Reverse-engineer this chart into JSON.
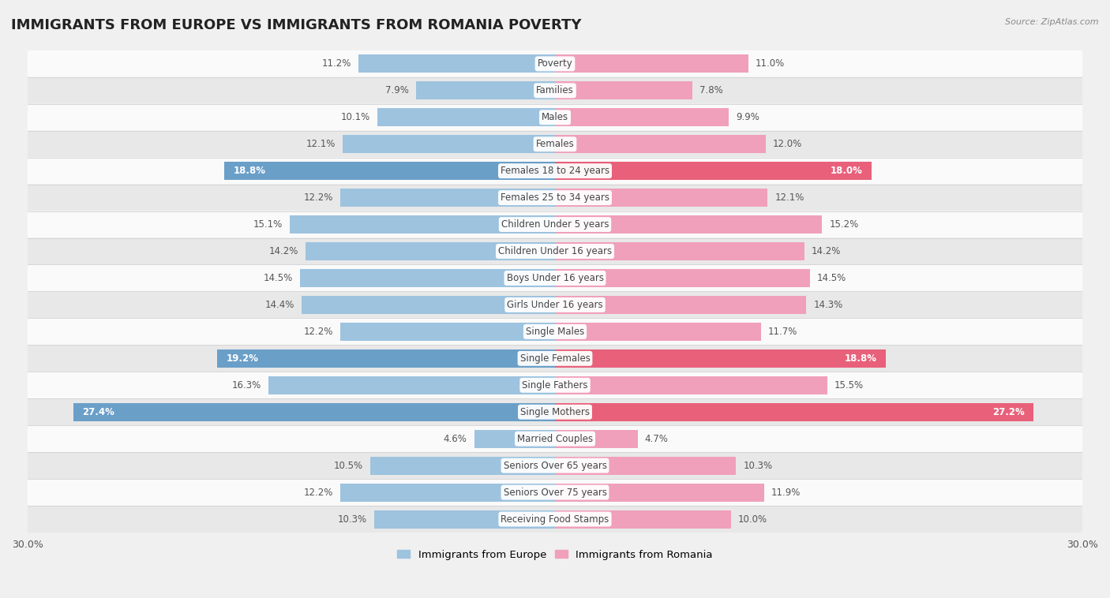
{
  "title": "IMMIGRANTS FROM EUROPE VS IMMIGRANTS FROM ROMANIA POVERTY",
  "source": "Source: ZipAtlas.com",
  "categories": [
    "Poverty",
    "Families",
    "Males",
    "Females",
    "Females 18 to 24 years",
    "Females 25 to 34 years",
    "Children Under 5 years",
    "Children Under 16 years",
    "Boys Under 16 years",
    "Girls Under 16 years",
    "Single Males",
    "Single Females",
    "Single Fathers",
    "Single Mothers",
    "Married Couples",
    "Seniors Over 65 years",
    "Seniors Over 75 years",
    "Receiving Food Stamps"
  ],
  "europe_values": [
    11.2,
    7.9,
    10.1,
    12.1,
    18.8,
    12.2,
    15.1,
    14.2,
    14.5,
    14.4,
    12.2,
    19.2,
    16.3,
    27.4,
    4.6,
    10.5,
    12.2,
    10.3
  ],
  "romania_values": [
    11.0,
    7.8,
    9.9,
    12.0,
    18.0,
    12.1,
    15.2,
    14.2,
    14.5,
    14.3,
    11.7,
    18.8,
    15.5,
    27.2,
    4.7,
    10.3,
    11.9,
    10.0
  ],
  "europe_color": "#9dc3df",
  "romania_color": "#f0a0ba",
  "highlight_europe": [
    4,
    11,
    13
  ],
  "highlight_romania": [
    4,
    11,
    13
  ],
  "highlight_europe_color": "#6a9fc8",
  "highlight_romania_color": "#e8607a",
  "bar_height": 0.68,
  "max_val": 30.0,
  "background_color": "#f0f0f0",
  "row_bg_light": "#fafafa",
  "row_bg_dark": "#e8e8e8",
  "legend_europe": "Immigrants from Europe",
  "legend_romania": "Immigrants from Romania",
  "title_fontsize": 13,
  "label_fontsize": 8.5,
  "value_fontsize": 8.5
}
